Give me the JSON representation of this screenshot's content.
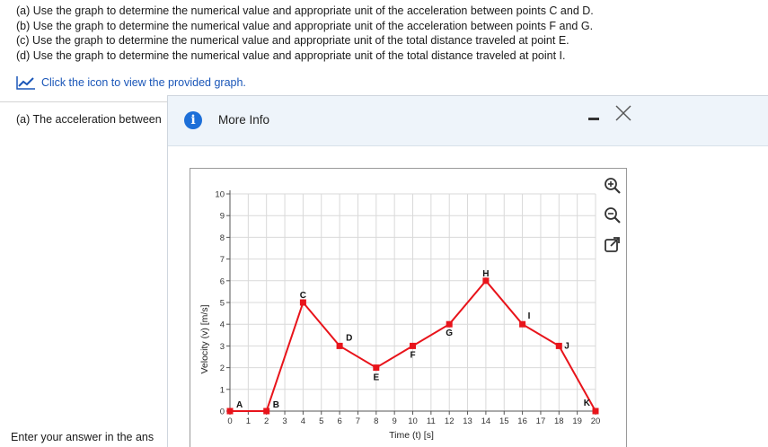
{
  "questions": [
    "(a) Use the graph to determine the numerical value and appropriate unit of the acceleration between points C and D.",
    "(b) Use the graph to determine the numerical value and appropriate unit of the acceleration between points F and G.",
    "(c) Use the graph to determine the numerical value and appropriate unit of the total distance traveled at point E.",
    "(d) Use the graph to determine the numerical value and appropriate unit of the total distance traveled at point I."
  ],
  "graph_link": {
    "label": "Click the icon to view the provided graph.",
    "icon": "line-chart-icon"
  },
  "part_a_prompt": "(a) The acceleration between",
  "answer_prompt": "Enter your answer in the ans",
  "modal": {
    "title": "More Info",
    "info_icon": "info-icon",
    "minimize_icon": "minimize-icon",
    "close_icon": "close-icon",
    "tools": [
      "zoom-in-icon",
      "zoom-out-icon",
      "open-external-icon"
    ]
  },
  "colors": {
    "accent": "#1d6fd8",
    "series": "#e8141b",
    "link": "#1a56b8"
  },
  "chart_data": {
    "type": "line",
    "title": "",
    "xlabel": "Time (t) [s]",
    "ylabel": "Velocity (v) [m/s]",
    "xlim": [
      0,
      20
    ],
    "ylim": [
      0,
      10
    ],
    "xticks": [
      0,
      1,
      2,
      3,
      4,
      5,
      6,
      7,
      8,
      9,
      10,
      11,
      12,
      13,
      14,
      15,
      16,
      17,
      18,
      19,
      20
    ],
    "yticks": [
      0,
      1,
      2,
      3,
      4,
      5,
      6,
      7,
      8,
      9,
      10
    ],
    "grid": true,
    "series": [
      {
        "x": [
          0,
          2,
          4,
          6,
          8,
          10,
          12,
          14,
          16,
          18,
          20
        ],
        "y": [
          0,
          0,
          5,
          3,
          2,
          3,
          4,
          6,
          4,
          3,
          0
        ]
      }
    ],
    "point_labels": [
      "A",
      "B",
      "C",
      "D",
      "E",
      "F",
      "G",
      "H",
      "I",
      "J",
      "K"
    ]
  }
}
